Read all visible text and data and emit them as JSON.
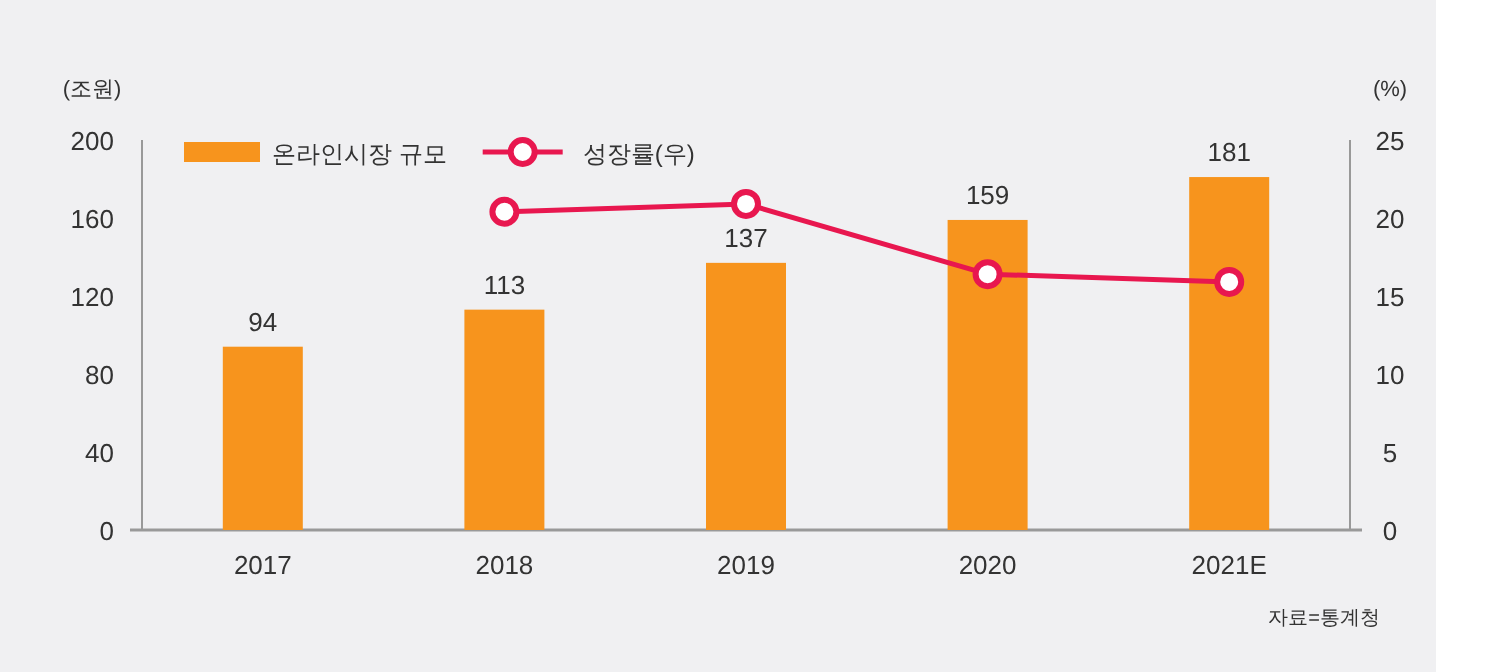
{
  "chart_data": {
    "type": "bar",
    "categories": [
      "2017",
      "2018",
      "2019",
      "2020",
      "2021E"
    ],
    "series": [
      {
        "name": "온라인시장 규모",
        "color": "#f7941d",
        "values": [
          94,
          113,
          137,
          159,
          181
        ],
        "value_labels": [
          "94",
          "113",
          "137",
          "159",
          "181"
        ]
      },
      {
        "name": "성장률(우)",
        "type": "line",
        "axis": "y2",
        "color": "#e8174f",
        "marker": "circle",
        "values": [
          null,
          20.4,
          20.9,
          16.4,
          15.9
        ]
      }
    ],
    "ylabel": "(조원)",
    "y2label": "(%)",
    "ylim": [
      0,
      200
    ],
    "yticks": [
      0,
      40,
      80,
      120,
      160,
      200
    ],
    "y2lim": [
      0,
      25
    ],
    "y2ticks": [
      0,
      5,
      10,
      15,
      20,
      25
    ],
    "legend": "top left",
    "grid": false,
    "annotations": [
      "자료=통계청"
    ]
  }
}
